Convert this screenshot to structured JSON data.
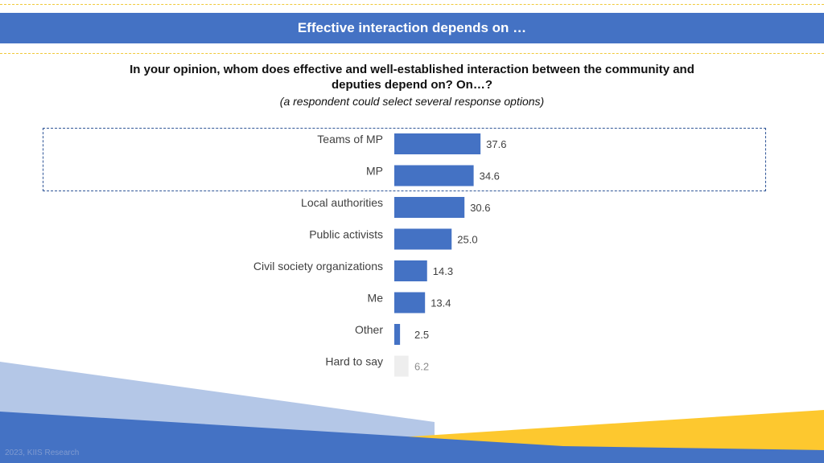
{
  "header": {
    "title": "Effective interaction depends on …"
  },
  "question": {
    "line1": "In your opinion, whom does effective and well-established interaction between the community and",
    "line2": "deputies depend on? On…?",
    "note": "(a respondent could select several response options)"
  },
  "colors": {
    "bar": "#4472c4",
    "bar_muted": "#eeeeee",
    "accent_yellow": "#fdc82f",
    "light_blue": "#b4c7e7"
  },
  "chart_data": {
    "type": "bar",
    "orientation": "horizontal",
    "categories": [
      "Teams of MP",
      "MP",
      "Local authorities",
      "Public activists",
      "Civil society organizations",
      "Me",
      "Other",
      "Hard to say"
    ],
    "values": [
      37.6,
      34.6,
      30.6,
      25.0,
      14.3,
      13.4,
      2.5,
      6.2
    ],
    "value_labels": [
      "37.6",
      "34.6",
      "30.6",
      "25.0",
      "14.3",
      "13.4",
      "2.5",
      "6.2"
    ],
    "muted": [
      false,
      false,
      false,
      false,
      false,
      false,
      false,
      true
    ],
    "highlighted": [
      "Teams of MP",
      "MP"
    ],
    "xlim": [
      0,
      100
    ],
    "grid": false,
    "legend": "none"
  },
  "footer": {
    "source": "2023, KIIS Research"
  }
}
